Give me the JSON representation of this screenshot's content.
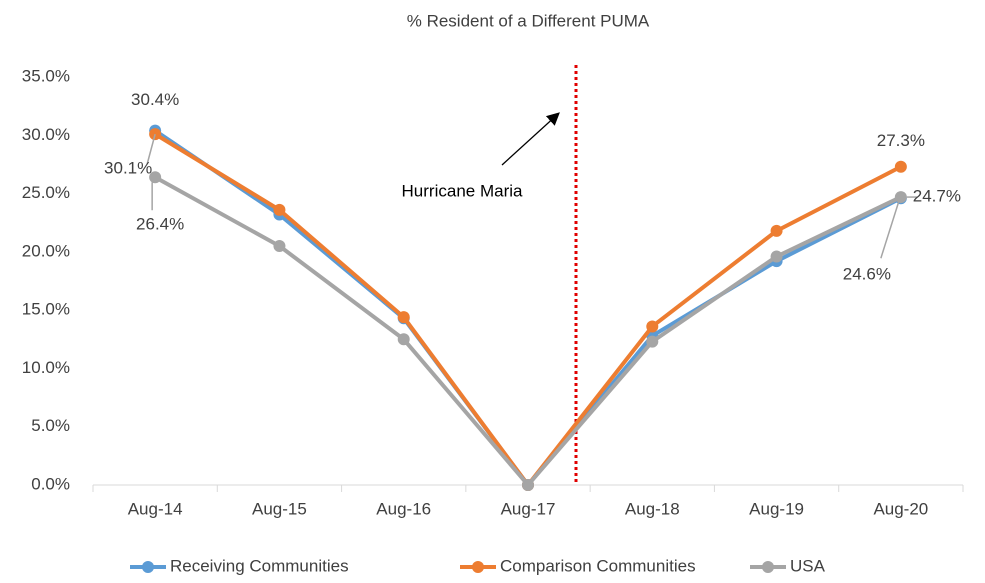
{
  "chart_data": {
    "type": "line",
    "title": "% Resident of a Different PUMA",
    "categories": [
      "Aug-14",
      "Aug-15",
      "Aug-16",
      "Aug-17",
      "Aug-18",
      "Aug-19",
      "Aug-20"
    ],
    "series": [
      {
        "name": "Receiving Communities",
        "color": "#5b9bd5",
        "values": [
          30.4,
          23.2,
          14.3,
          0,
          12.8,
          19.2,
          24.6
        ],
        "value_labels": [
          "30.4%",
          null,
          null,
          null,
          null,
          null,
          "24.6%"
        ]
      },
      {
        "name": "Comparison Communities",
        "color": "#ed7d31",
        "values": [
          30.1,
          23.6,
          14.4,
          0,
          13.6,
          21.8,
          27.3
        ],
        "value_labels": [
          "30.1%",
          null,
          null,
          null,
          null,
          null,
          "27.3%"
        ]
      },
      {
        "name": "USA",
        "color": "#a5a5a5",
        "values": [
          26.4,
          20.5,
          12.5,
          0,
          12.3,
          19.6,
          24.7
        ],
        "value_labels": [
          "26.4%",
          null,
          null,
          null,
          null,
          null,
          "24.7%"
        ]
      }
    ],
    "ylim": [
      0,
      35
    ],
    "yticks": [
      {
        "value": 0,
        "label": "0.0%"
      },
      {
        "value": 5,
        "label": "5.0%"
      },
      {
        "value": 10,
        "label": "10.0%"
      },
      {
        "value": 15,
        "label": "15.0%"
      },
      {
        "value": 20,
        "label": "20.0%"
      },
      {
        "value": 25,
        "label": "25.0%"
      },
      {
        "value": 30,
        "label": "30.0%"
      },
      {
        "value": 35,
        "label": "35.0%"
      }
    ],
    "annotation": "Hurricane Maria",
    "legend": "bottom"
  }
}
